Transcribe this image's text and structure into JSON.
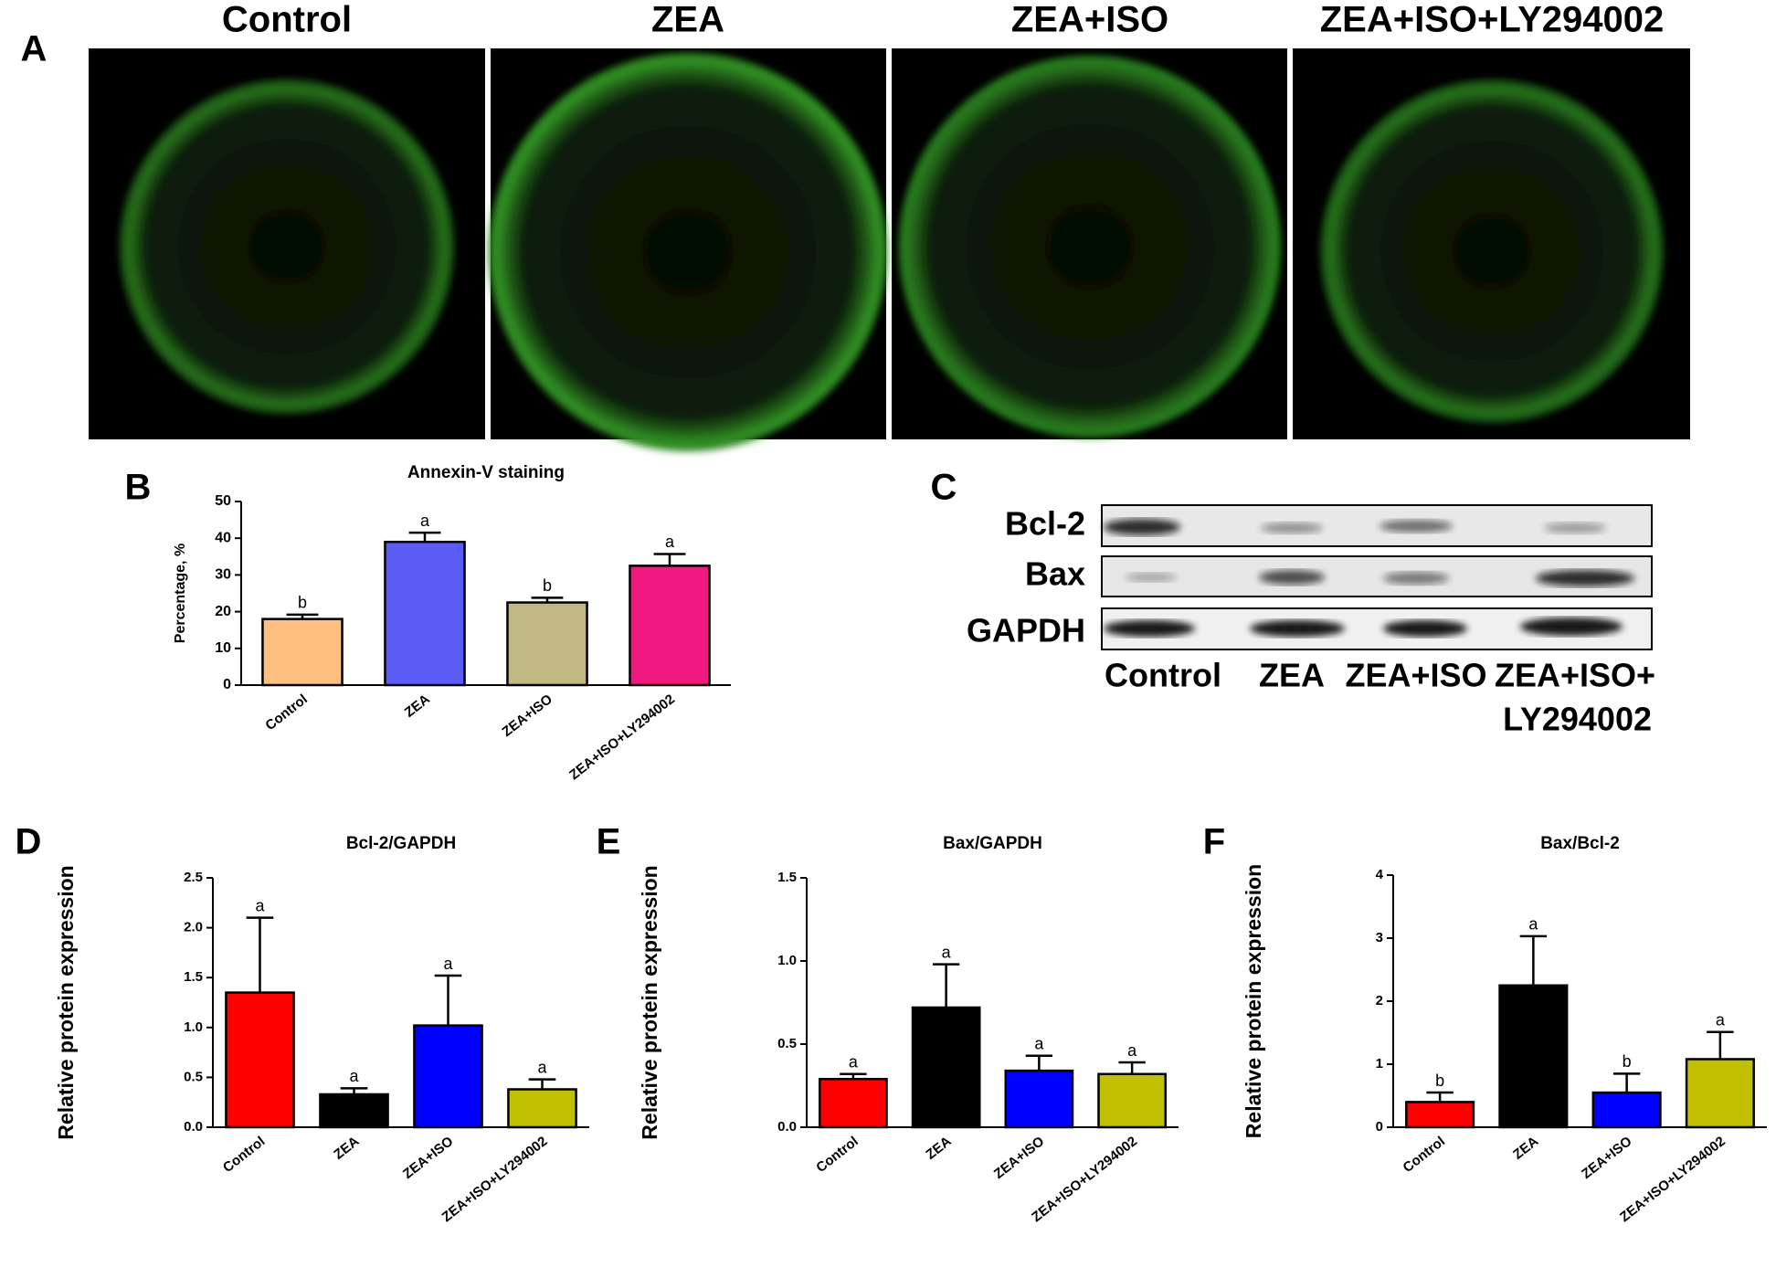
{
  "panel_a": {
    "panel": "A",
    "labels": [
      "Control",
      "ZEA",
      "ZEA+ISO",
      "ZEA+ISO+LY294002"
    ]
  },
  "panel_c": {
    "panel": "C",
    "rows": [
      "Bcl-2",
      "Bax",
      "GAPDH"
    ],
    "lanes": [
      [
        "Control"
      ],
      [
        "ZEA"
      ],
      [
        "ZEA+ISO"
      ],
      [
        "ZEA+ISO+",
        "LY294002"
      ]
    ]
  },
  "chart_data": [
    {
      "type": "bar",
      "panel": "B",
      "title": "Annexin-V staining",
      "y_label": "Percentage, %",
      "categories": [
        "Control",
        "ZEA",
        "ZEA+ISO",
        "ZEA+ISO+LY294002"
      ],
      "values": [
        18,
        39,
        22.5,
        32.5
      ],
      "errors": [
        1.2,
        2.5,
        1.3,
        3.2
      ],
      "annotations": [
        "b",
        "a",
        "b",
        "a"
      ],
      "colors": [
        "#fdbf80",
        "#5b5bf5",
        "#c2b883",
        "#f0197f"
      ],
      "ylim": [
        0,
        50
      ],
      "yticks": [
        0,
        10,
        20,
        30,
        40,
        50
      ]
    },
    {
      "type": "bar",
      "panel": "D",
      "title": "Bcl-2/GAPDH",
      "y_label": "Relative protein expression",
      "categories": [
        "Control",
        "ZEA",
        "ZEA+ISO",
        "ZEA+ISO+LY294002"
      ],
      "values": [
        1.35,
        0.33,
        1.02,
        0.38
      ],
      "errors": [
        0.75,
        0.06,
        0.5,
        0.1
      ],
      "annotations": [
        "a",
        "a",
        "a",
        "a"
      ],
      "colors": [
        "#ff0000",
        "#000000",
        "#0000ff",
        "#c0c000"
      ],
      "ylim": [
        0,
        2.5
      ],
      "yticks": [
        {
          "value": 0,
          "label": "0.0"
        },
        0.5,
        {
          "value": 1,
          "label": "1.0"
        },
        1.5,
        {
          "value": 2,
          "label": "2.0"
        },
        2.5
      ]
    },
    {
      "type": "bar",
      "panel": "E",
      "title": "Bax/GAPDH",
      "y_label": "Relative protein expression",
      "categories": [
        "Control",
        "ZEA",
        "ZEA+ISO",
        "ZEA+ISO+LY294002"
      ],
      "values": [
        0.29,
        0.72,
        0.34,
        0.32
      ],
      "errors": [
        0.03,
        0.26,
        0.09,
        0.07
      ],
      "annotations": [
        "a",
        "a",
        "a",
        "a"
      ],
      "colors": [
        "#ff0000",
        "#000000",
        "#0000ff",
        "#c0c000"
      ],
      "ylim": [
        0,
        1.5
      ],
      "yticks": [
        {
          "value": 0,
          "label": "0.0"
        },
        0.5,
        {
          "value": 1,
          "label": "1.0"
        },
        1.5
      ]
    },
    {
      "type": "bar",
      "panel": "F",
      "title": "Bax/Bcl-2",
      "y_label": "Relative protein expression",
      "categories": [
        "Control",
        "ZEA",
        "ZEA+ISO",
        "ZEA+ISO+LY294002"
      ],
      "values": [
        0.4,
        2.25,
        0.55,
        1.08
      ],
      "errors": [
        0.15,
        0.78,
        0.3,
        0.43
      ],
      "annotations": [
        "b",
        "a",
        "b",
        "a"
      ],
      "colors": [
        "#ff0000",
        "#000000",
        "#0000ff",
        "#c0c000"
      ],
      "ylim": [
        0,
        4
      ],
      "yticks": [
        0,
        1,
        2,
        3,
        4
      ]
    }
  ]
}
